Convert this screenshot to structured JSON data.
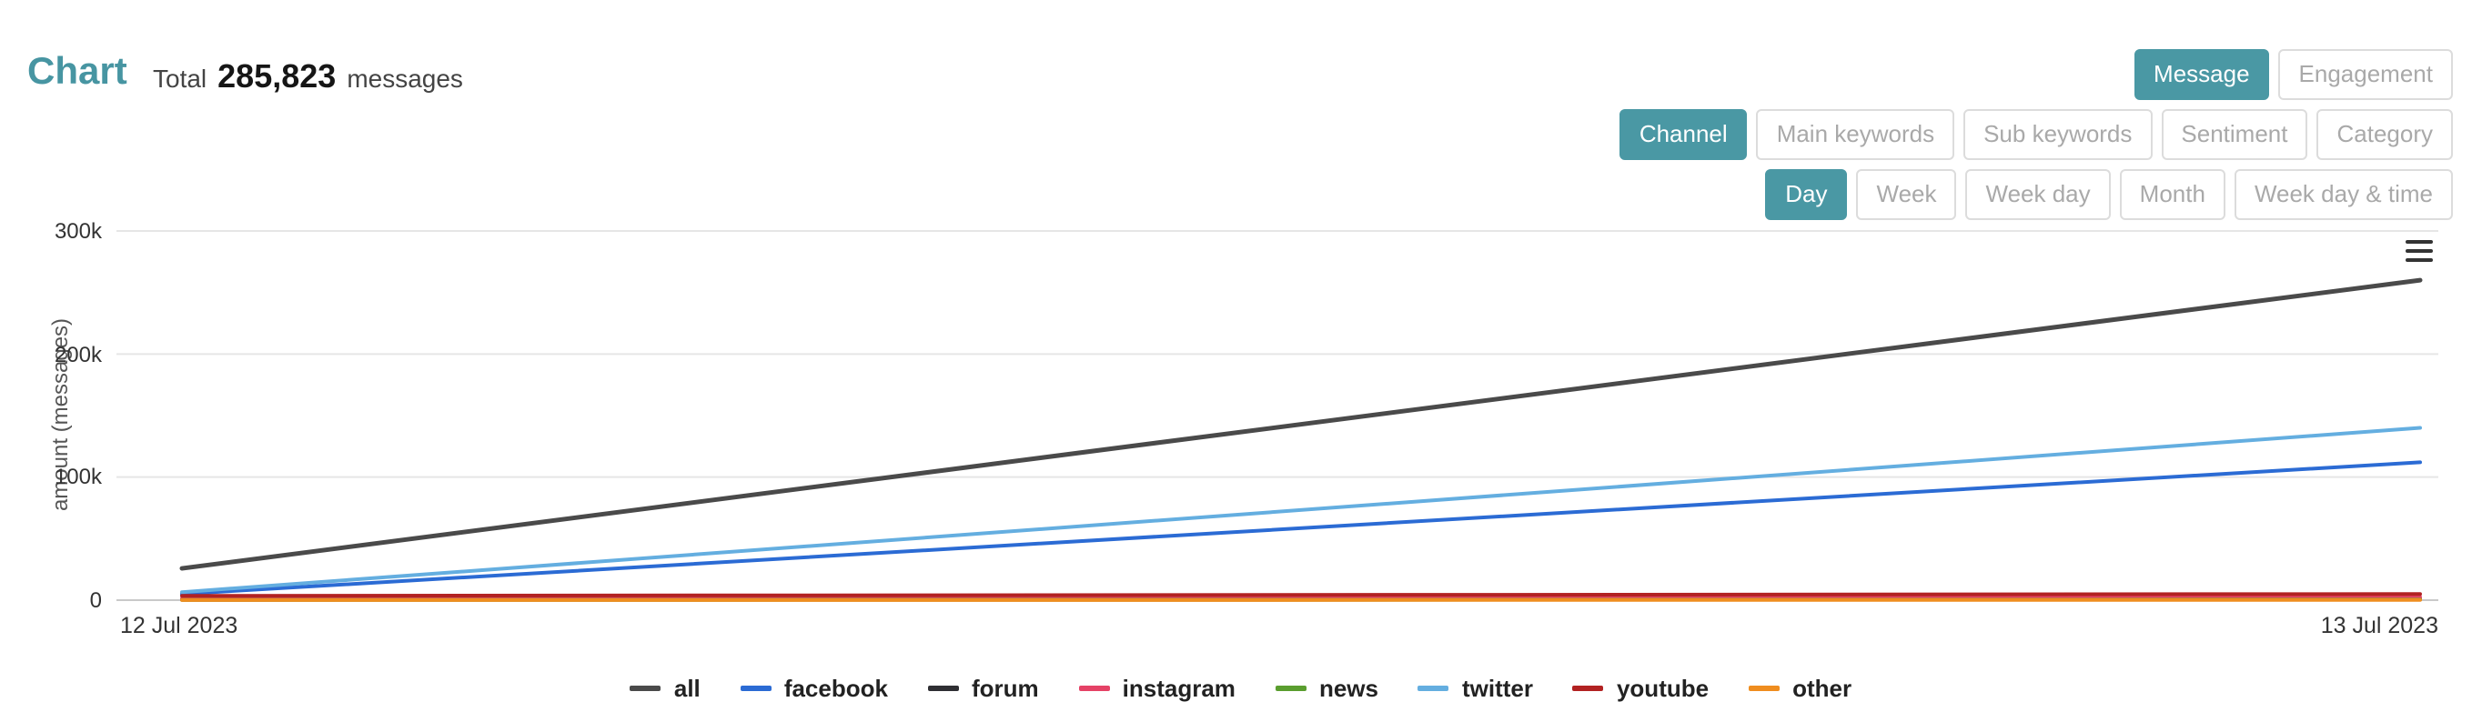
{
  "header": {
    "title": "Chart",
    "total_label": "Total",
    "total_value": "285,823",
    "total_unit": "messages"
  },
  "controls": {
    "metric": {
      "active": "Message",
      "options": [
        "Message",
        "Engagement"
      ]
    },
    "dimension": {
      "active": "Channel",
      "options": [
        "Channel",
        "Main keywords",
        "Sub keywords",
        "Sentiment",
        "Category"
      ]
    },
    "granularity": {
      "active": "Day",
      "options": [
        "Day",
        "Week",
        "Week day",
        "Month",
        "Week day & time"
      ]
    }
  },
  "colors": {
    "accent": "#4a98a4",
    "title": "#4795a2",
    "inactive_text": "#a9a9a9",
    "button_border": "#dcdcdc",
    "grid": "#e6e6e6",
    "axis": "#c9c9c9"
  },
  "icons": {
    "export_menu": "hamburger-icon"
  },
  "chart_data": {
    "type": "line",
    "x": [
      "12 Jul 2023",
      "13 Jul 2023"
    ],
    "xlabel": "",
    "ylabel": "amount (messages)",
    "ylim": [
      0,
      300000
    ],
    "yticks": [
      "0",
      "100k",
      "200k",
      "300k"
    ],
    "grid": true,
    "legend_position": "bottom",
    "series": [
      {
        "name": "all",
        "color": "#4a4a4a",
        "values": [
          25823,
          260000
        ]
      },
      {
        "name": "facebook",
        "color": "#2b6bd4",
        "values": [
          5000,
          112000
        ]
      },
      {
        "name": "forum",
        "color": "#2f2f33",
        "values": [
          300,
          900
        ]
      },
      {
        "name": "instagram",
        "color": "#e54266",
        "values": [
          1200,
          2400
        ]
      },
      {
        "name": "news",
        "color": "#5a9e2f",
        "values": [
          150,
          450
        ]
      },
      {
        "name": "twitter",
        "color": "#64aee0",
        "values": [
          6500,
          140000
        ]
      },
      {
        "name": "youtube",
        "color": "#b22222",
        "values": [
          3500,
          5000
        ]
      },
      {
        "name": "other",
        "color": "#ef8d1f",
        "values": [
          80,
          200
        ]
      }
    ]
  }
}
